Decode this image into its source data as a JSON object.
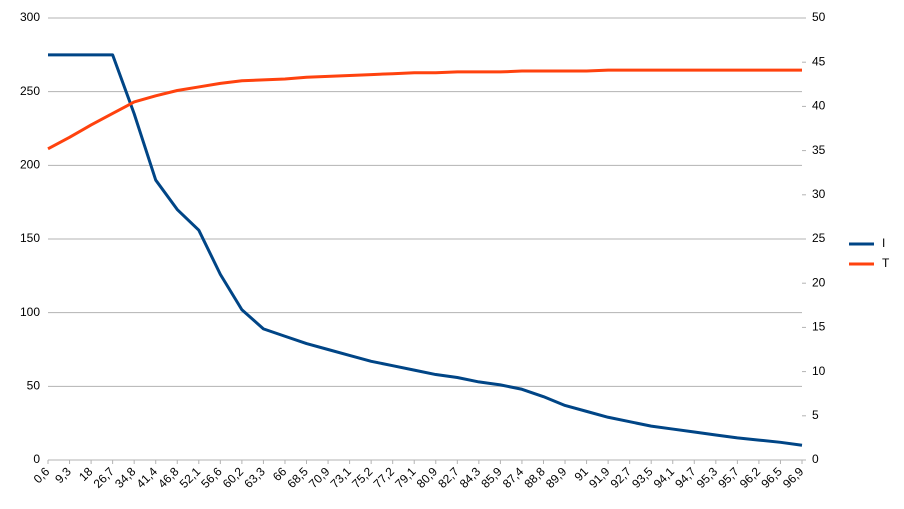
{
  "chart_data": {
    "type": "line",
    "categories": [
      "0,6",
      "9,3",
      "18",
      "26,7",
      "34,8",
      "41,4",
      "46,8",
      "52,1",
      "56,6",
      "60,2",
      "63,3",
      "66",
      "68,5",
      "70,9",
      "73,1",
      "75,2",
      "77,2",
      "79,1",
      "80,9",
      "82,7",
      "84,3",
      "85,9",
      "87,4",
      "88,8",
      "89,9",
      "91",
      "91,9",
      "92,7",
      "93,5",
      "94,1",
      "94,7",
      "95,3",
      "95,7",
      "96,2",
      "96,5",
      "96,9"
    ],
    "series": [
      {
        "name": "I",
        "color": "#004586",
        "values": [
          275,
          275,
          275,
          275,
          235,
          190,
          170,
          156,
          126,
          102,
          89,
          84,
          79,
          75,
          71,
          67,
          64,
          61,
          58,
          56,
          53,
          51,
          48,
          43,
          37,
          33,
          29,
          26,
          23,
          21,
          19,
          17,
          15,
          13.5,
          12,
          10
        ]
      },
      {
        "name": "T",
        "color": "#ff420e",
        "axis": "y2",
        "values": [
          35.2,
          36.5,
          37.9,
          39.2,
          40.5,
          41.2,
          41.8,
          42.2,
          42.6,
          42.9,
          43.0,
          43.1,
          43.3,
          43.4,
          43.5,
          43.6,
          43.7,
          43.8,
          43.8,
          43.9,
          43.9,
          43.9,
          44,
          44,
          44,
          44,
          44.1,
          44.1,
          44.1,
          44.1,
          44.1,
          44.1,
          44.1,
          44.1,
          44.1,
          44.1
        ]
      }
    ],
    "ylim": [
      0,
      300
    ],
    "yticks": [
      0,
      50,
      100,
      150,
      200,
      250,
      300
    ],
    "y2lim": [
      0,
      50
    ],
    "y2ticks": [
      0,
      5,
      10,
      15,
      20,
      25,
      30,
      35,
      40,
      45,
      50
    ],
    "grid": true,
    "legend": "right"
  }
}
